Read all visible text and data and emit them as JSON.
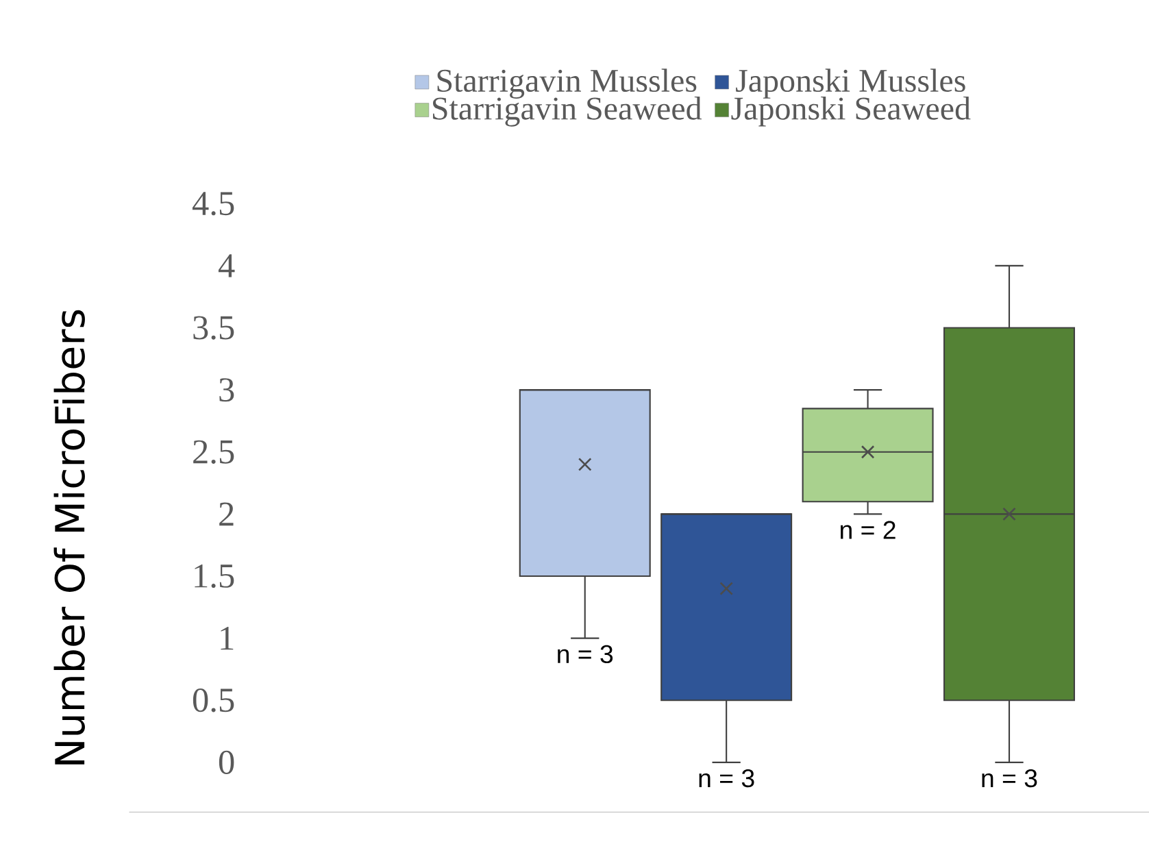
{
  "chart_data": {
    "type": "box",
    "ylabel": "Number Of MicroFibers",
    "categories": [
      null
    ],
    "series": [
      {
        "name": "Starrigavin Mussles",
        "color": "#b4c7e7",
        "boxes": [
          {
            "low": 1,
            "q1": 1.5,
            "median": 3,
            "q3": 3,
            "high": 3,
            "mean": 2.4
          }
        ]
      },
      {
        "name": "Japonski Mussles",
        "color": "#2f5597",
        "boxes": [
          {
            "low": 0,
            "q1": 0.5,
            "median": 2,
            "q3": 2,
            "high": 2,
            "mean": 1.4
          }
        ]
      },
      {
        "name": "Starrigavin Seaweed",
        "color": "#a9d18e",
        "boxes": [
          {
            "low": 2,
            "q1": 2.1,
            "median": 2.5,
            "q3": 2.85,
            "high": 3,
            "mean": 2.5
          }
        ]
      },
      {
        "name": "Japonski Seaweed",
        "color": "#548235",
        "boxes": [
          {
            "low": 0,
            "q1": 0.5,
            "median": 2,
            "q3": 3.5,
            "high": 4,
            "mean": 2
          }
        ]
      }
    ],
    "ylim": [
      -0.4,
      4.5
    ],
    "yticks": [
      0,
      0.5,
      1,
      1.5,
      2,
      2.5,
      3,
      3.5,
      4,
      4.5
    ],
    "legend": "top",
    "grid": false,
    "annotations": [
      "n = 3",
      "n = 3",
      "n = 2",
      "n = 3"
    ]
  }
}
